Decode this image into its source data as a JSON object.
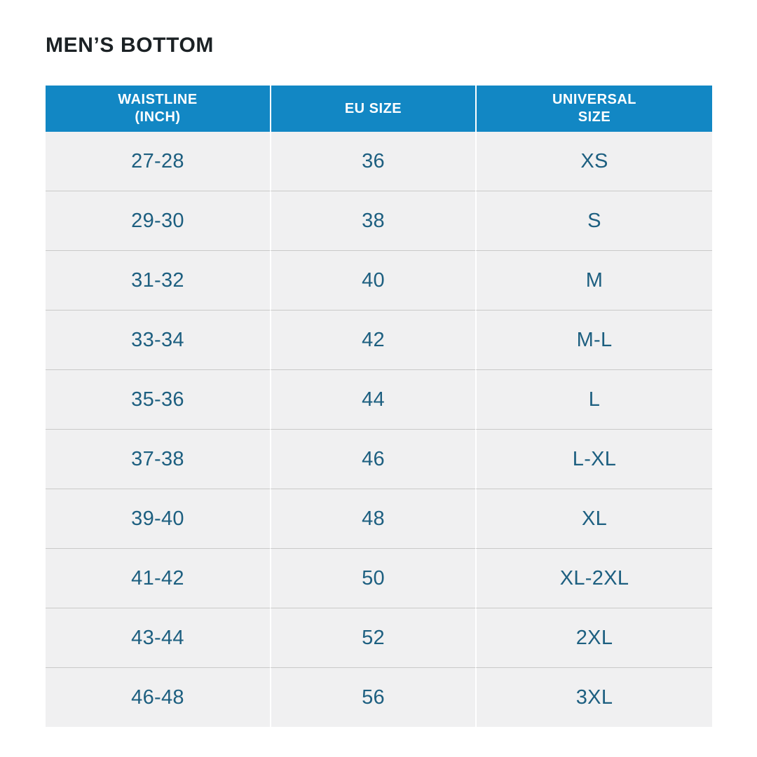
{
  "title": "MEN’S BOTTOM",
  "colors": {
    "header_background": "#1287c4",
    "header_text": "#ffffff",
    "row_background": "#f0f0f1",
    "row_divider": "#c9c9c9",
    "cell_text": "#1d5f80",
    "title_text": "#1b2124"
  },
  "chart_data": {
    "type": "table",
    "title": "MEN’S BOTTOM",
    "columns": [
      "WAISTLINE\n(INCH)",
      "EU SIZE",
      "UNIVERSAL\nSIZE"
    ],
    "rows": [
      [
        "27-28",
        "36",
        "XS"
      ],
      [
        "29-30",
        "38",
        "S"
      ],
      [
        "31-32",
        "40",
        "M"
      ],
      [
        "33-34",
        "42",
        "M-L"
      ],
      [
        "35-36",
        "44",
        "L"
      ],
      [
        "37-38",
        "46",
        "L-XL"
      ],
      [
        "39-40",
        "48",
        "XL"
      ],
      [
        "41-42",
        "50",
        "XL-2XL"
      ],
      [
        "43-44",
        "52",
        "2XL"
      ],
      [
        "46-48",
        "56",
        "3XL"
      ]
    ]
  }
}
